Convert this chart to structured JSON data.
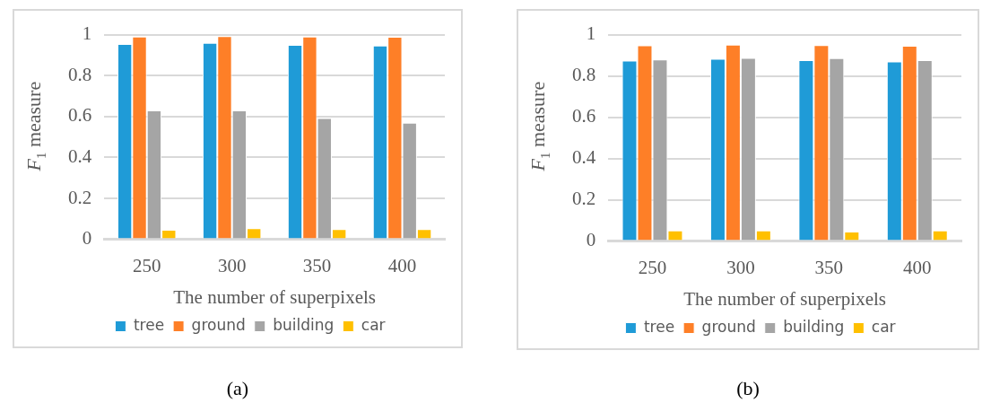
{
  "chart_data": [
    {
      "type": "bar",
      "xlabel": "The number of superpixels",
      "ylabel": "F$_{1}$ measure",
      "categories": [
        "250",
        "300",
        "350",
        "400"
      ],
      "series": [
        {
          "name": "tree",
          "color": "#1f9bd7",
          "values": [
            0.954,
            0.96,
            0.95,
            0.947
          ]
        },
        {
          "name": "ground",
          "color": "#fe7f27",
          "values": [
            0.991,
            0.993,
            0.991,
            0.99
          ]
        },
        {
          "name": "building",
          "color": "#a5a5a5",
          "values": [
            0.63,
            0.63,
            0.592,
            0.57
          ]
        },
        {
          "name": "car",
          "color": "#ffc000",
          "values": [
            0.047,
            0.054,
            0.05,
            0.05
          ]
        }
      ],
      "ylim": [
        0,
        1
      ],
      "yticks": [
        0,
        0.2,
        0.4,
        0.6,
        0.8,
        1
      ],
      "grid": "y",
      "legend": "bottom",
      "annotations": [
        "(a)"
      ]
    },
    {
      "type": "bar",
      "xlabel": "The number of superpixels",
      "ylabel": "F$_{1}$ measure",
      "categories": [
        "250",
        "300",
        "350",
        "400"
      ],
      "series": [
        {
          "name": "tree",
          "color": "#1f9bd7",
          "values": [
            0.874,
            0.883,
            0.877,
            0.87
          ]
        },
        {
          "name": "ground",
          "color": "#fe7f27",
          "values": [
            0.948,
            0.951,
            0.949,
            0.946
          ]
        },
        {
          "name": "building",
          "color": "#a5a5a5",
          "values": [
            0.88,
            0.887,
            0.886,
            0.877
          ]
        },
        {
          "name": "car",
          "color": "#ffc000",
          "values": [
            0.051,
            0.051,
            0.046,
            0.051
          ]
        }
      ],
      "ylim": [
        0,
        1
      ],
      "yticks": [
        0,
        0.2,
        0.4,
        0.6,
        0.8,
        1
      ],
      "grid": "y",
      "legend": "bottom",
      "annotations": [
        "(b)"
      ]
    }
  ]
}
